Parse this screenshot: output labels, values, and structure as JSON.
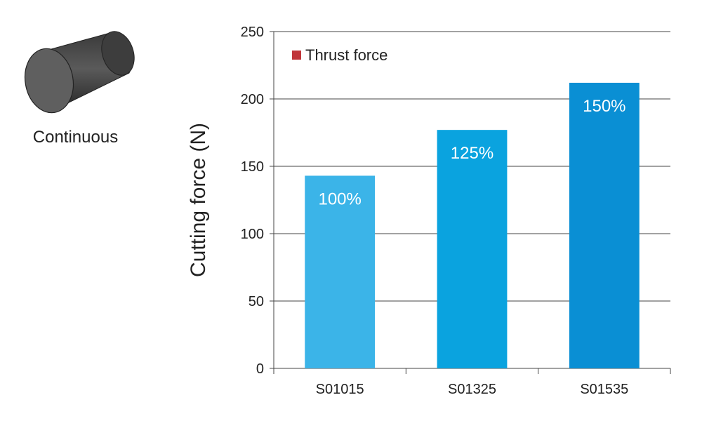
{
  "workpiece": {
    "label": "Continuous",
    "icon": "cylinder-icon"
  },
  "colors": {
    "legend": "#c0353a",
    "bars": [
      "#3bb4e8",
      "#0aa3df",
      "#0a8fd4"
    ],
    "grid": "#444444"
  },
  "chart_data": {
    "type": "bar",
    "categories": [
      "S01015",
      "S01325",
      "S01535"
    ],
    "series": [
      {
        "name": "Thrust force",
        "values": [
          143,
          177,
          212
        ],
        "labels": [
          "100%",
          "125%",
          "150%"
        ]
      }
    ],
    "ylabel": "Cutting force (N)",
    "xlabel": "",
    "ylim": [
      0,
      250
    ],
    "yticks": [
      0,
      50,
      100,
      150,
      200,
      250
    ],
    "grid": true,
    "legend_position": "top-left"
  }
}
